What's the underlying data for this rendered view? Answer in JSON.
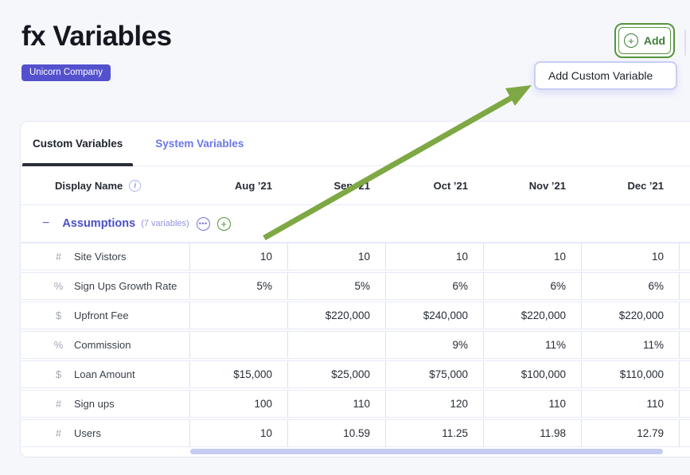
{
  "page": {
    "title": "fx Variables",
    "company_badge": "Unicorn Company"
  },
  "header": {
    "add_label": "Add",
    "menu_item": "Add Custom Variable"
  },
  "tabs": {
    "custom": "Custom Variables",
    "system": "System Variables",
    "active_tab": "Custom Variables"
  },
  "table": {
    "name_header": "Display Name",
    "months": [
      "Aug ’21",
      "Sep ’21",
      "Oct ’21",
      "Nov ’21",
      "Dec ’21"
    ],
    "group": {
      "collapse_glyph": "−",
      "name": "Assumptions",
      "count_label": "(7 variables)",
      "ellipsis_glyph": "•••",
      "plus_glyph": "+"
    },
    "rows": [
      {
        "icon": "#",
        "name": "Site Vistors",
        "values": [
          "10",
          "10",
          "10",
          "10",
          "10"
        ]
      },
      {
        "icon": "%",
        "name": "Sign Ups Growth Rate",
        "values": [
          "5%",
          "5%",
          "6%",
          "6%",
          "6%"
        ]
      },
      {
        "icon": "$",
        "name": "Upfront Fee",
        "values": [
          "",
          "$220,000",
          "$240,000",
          "$220,000",
          "$220,000"
        ]
      },
      {
        "icon": "%",
        "name": "Commission",
        "values": [
          "",
          "",
          "9%",
          "11%",
          "11%"
        ]
      },
      {
        "icon": "$",
        "name": "Loan Amount",
        "values": [
          "$15,000",
          "$25,000",
          "$75,000",
          "$100,000",
          "$110,000"
        ]
      },
      {
        "icon": "#",
        "name": "Sign ups",
        "values": [
          "100",
          "110",
          "120",
          "110",
          "110"
        ]
      },
      {
        "icon": "#",
        "name": "Users",
        "values": [
          "10",
          "10.59",
          "11.25",
          "11.98",
          "12.79"
        ]
      }
    ]
  },
  "icons": {
    "add_plus": "+",
    "info": "i"
  },
  "colors": {
    "badge_bg": "#5451CE",
    "accent_indigo": "#4A50C8",
    "inactive_tab": "#6B77E6",
    "add_green": "#55953F",
    "arrow_green": "#7EA843",
    "cell_border": "#DCE0F5",
    "scroll_thumb": "#C7CCF3",
    "page_bg": "#F6F7FB"
  }
}
